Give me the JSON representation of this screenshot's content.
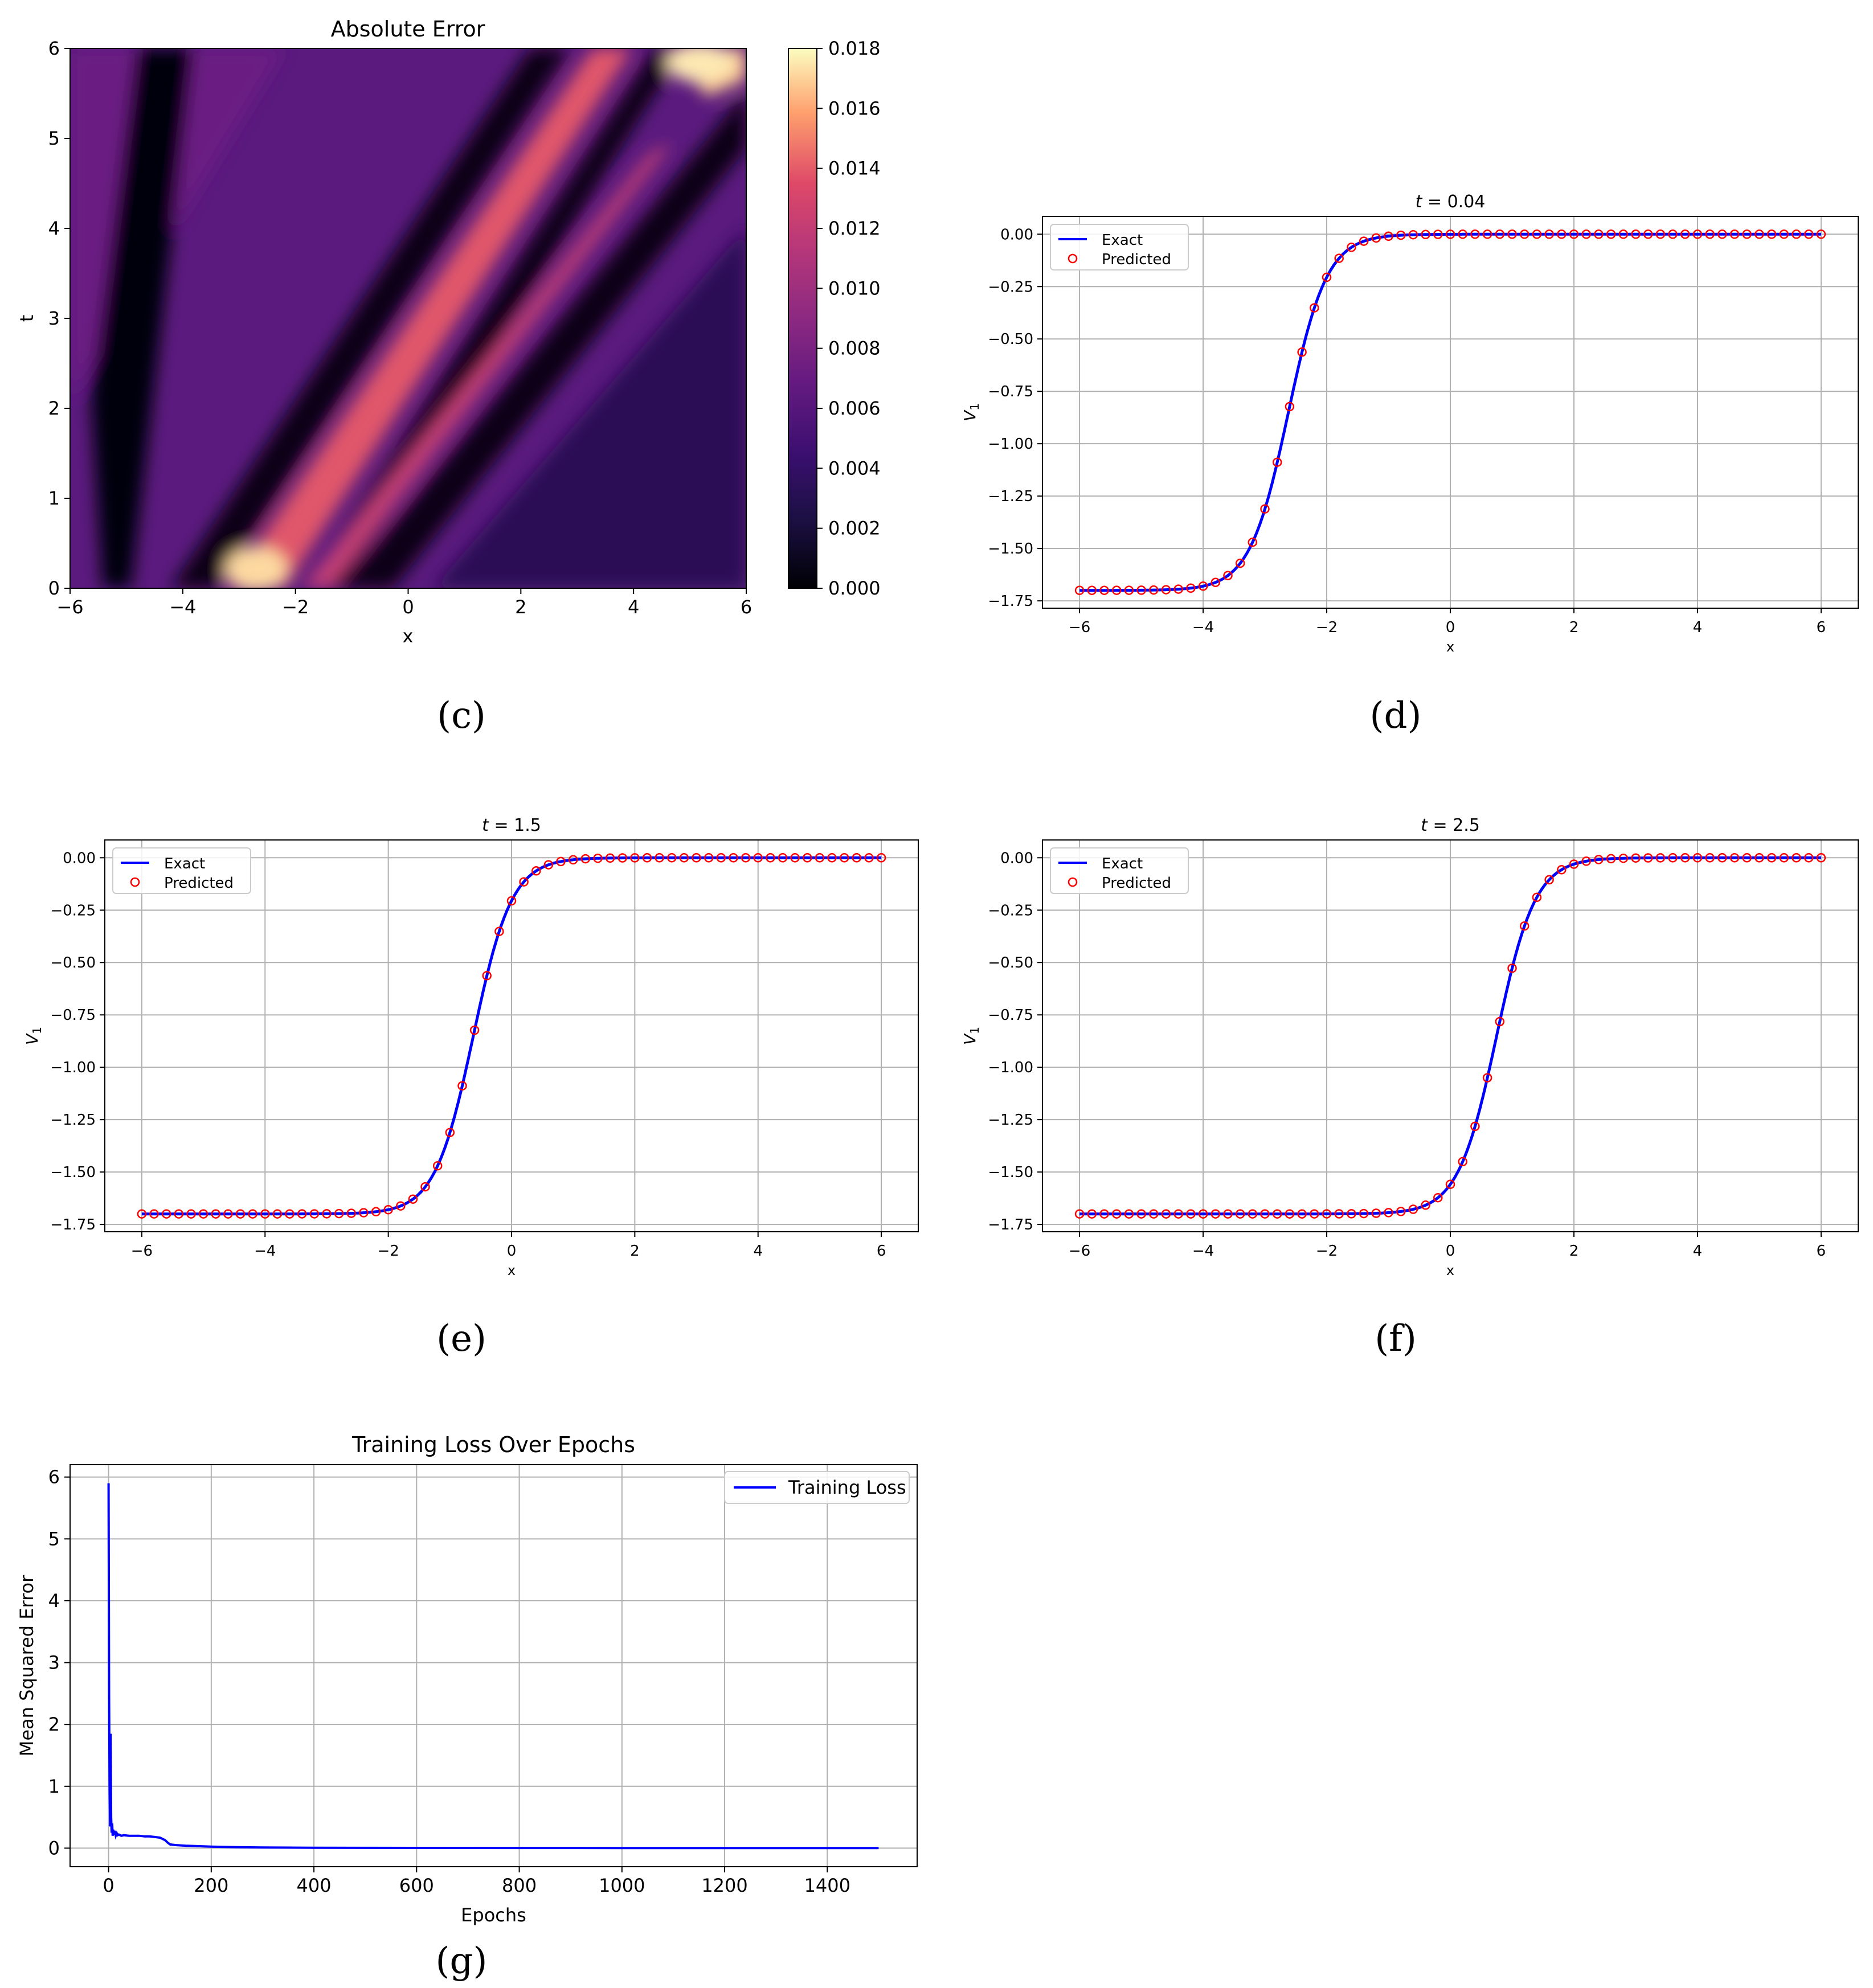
{
  "colors": {
    "exact_line": "#0000ff",
    "predicted_marker": "#ff0000",
    "loss_line": "#0000ff",
    "grid": "#b0b0b0"
  },
  "captions": [
    "(c)",
    "(d)",
    "(e)",
    "(f)",
    "(g)"
  ],
  "chart_data": [
    {
      "id": "c",
      "type": "heatmap",
      "title": "Absolute Error",
      "xlabel": "x",
      "ylabel": "t",
      "xlim": [
        -6,
        6
      ],
      "ylim": [
        0,
        6
      ],
      "xticks": [
        -6,
        -4,
        -2,
        0,
        2,
        4,
        6
      ],
      "xtick_labels": [
        "−6",
        "−4",
        "−2",
        "0",
        "2",
        "4",
        "6"
      ],
      "yticks": [
        0,
        1,
        2,
        3,
        4,
        5,
        6
      ],
      "ytick_labels": [
        "0",
        "1",
        "2",
        "3",
        "4",
        "5",
        "6"
      ],
      "colormap": "magma",
      "colorbar": {
        "range": [
          0,
          0.018
        ],
        "ticks": [
          0,
          0.002,
          0.004,
          0.006,
          0.008,
          0.01,
          0.012,
          0.014,
          0.016,
          0.018
        ],
        "tick_labels": [
          "0.000",
          "0.002",
          "0.004",
          "0.006",
          "0.008",
          "0.010",
          "0.012",
          "0.014",
          "0.016",
          "0.018"
        ]
      }
    },
    {
      "id": "d",
      "type": "line",
      "title_var": "t",
      "title_value": " = 0.04",
      "t": 0.04,
      "xlabel": "x",
      "ylabel_base": "V",
      "ylabel_sub": "1",
      "xlim": [
        -6,
        6
      ],
      "ylim": [
        -1.7,
        0
      ],
      "xticks": [
        -6,
        -4,
        -2,
        0,
        2,
        4,
        6
      ],
      "xtick_labels": [
        "−6",
        "−4",
        "−2",
        "0",
        "2",
        "4",
        "6"
      ],
      "yticks": [
        0,
        -0.25,
        -0.5,
        -0.75,
        -1.0,
        -1.25,
        -1.5,
        -1.75
      ],
      "ytick_labels": [
        "0.00",
        "−0.25",
        "−0.50",
        "−0.75",
        "−1.00",
        "−1.25",
        "−1.50",
        "−1.75"
      ],
      "series": [
        {
          "name": "Exact",
          "kind": "line",
          "formula": "-0.85*(1 - tanh(1.6*(x - (-2.62))))",
          "amplitude": -1.7,
          "center": -2.62,
          "steepness": 1.6
        },
        {
          "name": "Predicted",
          "kind": "scatter",
          "formula": "same as Exact",
          "points": 61,
          "x_range": [
            -6,
            6
          ]
        }
      ],
      "legend": [
        "Exact",
        "Predicted"
      ],
      "legend_position": "upper-left"
    },
    {
      "id": "e",
      "type": "line",
      "title_var": "t",
      "title_value": " = 1.5",
      "t": 1.5,
      "xlabel": "x",
      "ylabel_base": "V",
      "ylabel_sub": "1",
      "xlim": [
        -6,
        6
      ],
      "ylim": [
        -1.7,
        0
      ],
      "xticks": [
        -6,
        -4,
        -2,
        0,
        2,
        4,
        6
      ],
      "xtick_labels": [
        "−6",
        "−4",
        "−2",
        "0",
        "2",
        "4",
        "6"
      ],
      "yticks": [
        0,
        -0.25,
        -0.5,
        -0.75,
        -1.0,
        -1.25,
        -1.5,
        -1.75
      ],
      "ytick_labels": [
        "0.00",
        "−0.25",
        "−0.50",
        "−0.75",
        "−1.00",
        "−1.25",
        "−1.50",
        "−1.75"
      ],
      "series": [
        {
          "name": "Exact",
          "kind": "line",
          "formula": "-0.85*(1 - tanh(1.6*(x - (-0.62))))",
          "amplitude": -1.7,
          "center": -0.62,
          "steepness": 1.6
        },
        {
          "name": "Predicted",
          "kind": "scatter",
          "formula": "same as Exact",
          "points": 61,
          "x_range": [
            -6,
            6
          ]
        }
      ],
      "legend": [
        "Exact",
        "Predicted"
      ],
      "legend_position": "upper-left"
    },
    {
      "id": "f",
      "type": "line",
      "title_var": "t",
      "title_value": " = 2.5",
      "t": 2.5,
      "xlabel": "x",
      "ylabel_base": "V",
      "ylabel_sub": "1",
      "xlim": [
        -6,
        6
      ],
      "ylim": [
        -1.7,
        0
      ],
      "xticks": [
        -6,
        -4,
        -2,
        0,
        2,
        4,
        6
      ],
      "xtick_labels": [
        "−6",
        "−4",
        "−2",
        "0",
        "2",
        "4",
        "6"
      ],
      "yticks": [
        0,
        -0.25,
        -0.5,
        -0.75,
        -1.0,
        -1.25,
        -1.5,
        -1.75
      ],
      "ytick_labels": [
        "0.00",
        "−0.25",
        "−0.50",
        "−0.75",
        "−1.00",
        "−1.25",
        "−1.50",
        "−1.75"
      ],
      "series": [
        {
          "name": "Exact",
          "kind": "line",
          "formula": "-0.85*(1 - tanh(1.6*(x - 0.75)))",
          "amplitude": -1.7,
          "center": 0.75,
          "steepness": 1.6
        },
        {
          "name": "Predicted",
          "kind": "scatter",
          "formula": "same as Exact",
          "points": 61,
          "x_range": [
            -6,
            6
          ]
        }
      ],
      "legend": [
        "Exact",
        "Predicted"
      ],
      "legend_position": "upper-left"
    },
    {
      "id": "g",
      "type": "line",
      "title": "Training Loss Over Epochs",
      "xlabel": "Epochs",
      "ylabel": "Mean Squared Error",
      "xlim": [
        0,
        1500
      ],
      "ylim": [
        0,
        6
      ],
      "xticks": [
        0,
        200,
        400,
        600,
        800,
        1000,
        1200,
        1400
      ],
      "xtick_labels": [
        "0",
        "200",
        "400",
        "600",
        "800",
        "1000",
        "1200",
        "1400"
      ],
      "yticks": [
        0,
        1,
        2,
        3,
        4,
        5,
        6
      ],
      "ytick_labels": [
        "0",
        "1",
        "2",
        "3",
        "4",
        "5",
        "6"
      ],
      "series": [
        {
          "name": "Training Loss",
          "x": [
            0,
            1,
            2,
            3,
            4,
            5,
            6,
            7,
            8,
            9,
            10,
            12,
            14,
            16,
            18,
            20,
            25,
            30,
            40,
            50,
            60,
            70,
            80,
            90,
            100,
            110,
            115,
            120,
            130,
            150,
            200,
            250,
            300,
            400,
            500,
            600,
            800,
            1000,
            1200,
            1400,
            1500
          ],
          "y": [
            5.9,
            2.5,
            1.0,
            0.35,
            1.85,
            0.5,
            0.25,
            0.4,
            0.2,
            0.3,
            0.22,
            0.28,
            0.2,
            0.24,
            0.21,
            0.22,
            0.2,
            0.21,
            0.2,
            0.2,
            0.2,
            0.19,
            0.19,
            0.18,
            0.17,
            0.13,
            0.09,
            0.06,
            0.05,
            0.04,
            0.025,
            0.015,
            0.01,
            0.007,
            0.005,
            0.004,
            0.003,
            0.002,
            0.002,
            0.002,
            0.002
          ]
        }
      ],
      "legend": [
        "Training Loss"
      ],
      "legend_position": "upper-right"
    }
  ]
}
